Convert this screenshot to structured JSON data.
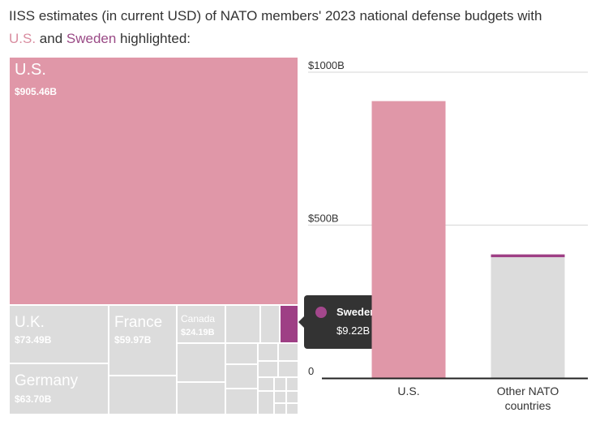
{
  "title": {
    "prefix": "IISS estimates (in current USD) of NATO members' 2023 national defense budgets with",
    "us": "U.S.",
    "and": " and ",
    "sweden": "Sweden",
    "suffix": " highlighted:"
  },
  "colors": {
    "us": "#e097a8",
    "sweden": "#9e3f85",
    "other": "#dcdcdc",
    "title_us": "#d98da0",
    "title_sweden": "#9a4a86"
  },
  "tooltip": {
    "name": "Sweden",
    "value": "$9.22B"
  },
  "chart_data": [
    {
      "type": "treemap",
      "title": "IISS estimates (in current USD) of NATO members' 2023 national defense budgets",
      "units": "billion USD",
      "items": [
        {
          "name": "U.S.",
          "label": "$905.46B",
          "value": 905.46
        },
        {
          "name": "U.K.",
          "label": "$73.49B",
          "value": 73.49
        },
        {
          "name": "Germany",
          "label": "$63.70B",
          "value": 63.7
        },
        {
          "name": "France",
          "label": "$59.97B",
          "value": 59.97
        },
        {
          "name": "Canada",
          "label": "$24.19B",
          "value": 24.19
        },
        {
          "name": "Sweden",
          "label": "$9.22B",
          "value": 9.22,
          "highlighted": true
        }
      ]
    },
    {
      "type": "bar",
      "stacked": true,
      "categories": [
        "U.S.",
        "Other NATO countries"
      ],
      "series": [
        {
          "name": "Other NATO countries",
          "values": [
            0,
            395
          ]
        },
        {
          "name": "Sweden",
          "values": [
            0,
            9.22
          ]
        },
        {
          "name": "U.S.",
          "values": [
            905.46,
            0
          ]
        }
      ],
      "ylim": [
        0,
        1000
      ],
      "yticks": [
        {
          "value": 0,
          "label": "0"
        },
        {
          "value": 500,
          "label": "$500B"
        },
        {
          "value": 1000,
          "label": "$1000B"
        }
      ],
      "xlabel": "",
      "ylabel": "",
      "grid": true
    }
  ]
}
